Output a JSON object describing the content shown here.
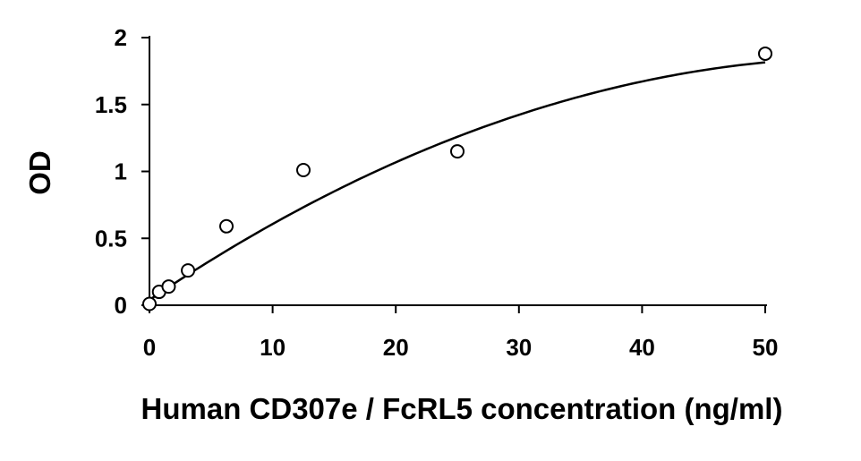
{
  "chart_data": {
    "type": "scatter",
    "title": "",
    "xlabel": "Human CD307e / FcRL5 concentration (ng/ml)",
    "ylabel": "OD",
    "xlim": [
      0,
      50
    ],
    "ylim": [
      0,
      2
    ],
    "x_ticks": [
      0,
      10,
      20,
      30,
      40,
      50
    ],
    "y_ticks": [
      0,
      0.5,
      1,
      1.5,
      2
    ],
    "x_tick_labels": [
      "0",
      "10",
      "20",
      "30",
      "40",
      "50"
    ],
    "y_tick_labels": [
      "0",
      "0.5",
      "1",
      "1.5",
      "2"
    ],
    "grid": false,
    "legend": "none",
    "series": [
      {
        "points": [
          {
            "x": 0,
            "y": 0.01
          },
          {
            "x": 0.78,
            "y": 0.1
          },
          {
            "x": 1.56,
            "y": 0.14
          },
          {
            "x": 3.13,
            "y": 0.26
          },
          {
            "x": 6.25,
            "y": 0.59
          },
          {
            "x": 12.5,
            "y": 1.01
          },
          {
            "x": 25,
            "y": 1.15
          },
          {
            "x": 50,
            "y": 1.88
          }
        ],
        "marker": "open-circle"
      }
    ],
    "fit_curve": {
      "type": "polynomial",
      "coefficients": [
        0.04,
        0.062,
        -0.00053
      ],
      "x_range": [
        0,
        50
      ]
    },
    "colors": {
      "axis": "#000000",
      "marker_stroke": "#000000",
      "marker_fill": "#ffffff",
      "curve": "#000000"
    }
  }
}
